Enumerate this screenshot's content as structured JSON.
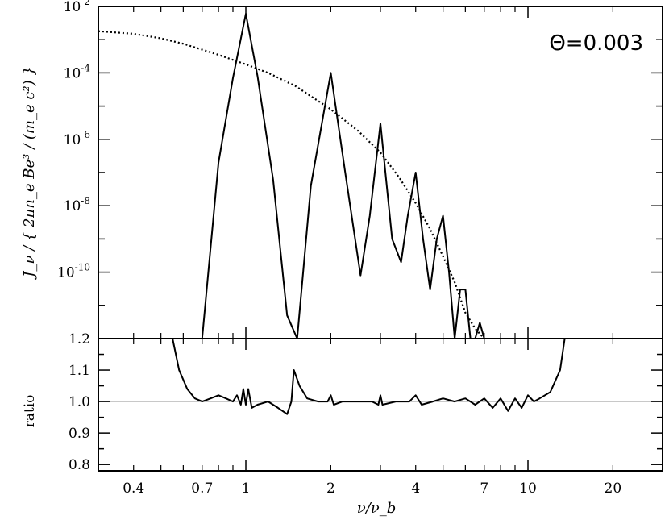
{
  "chart_data": [
    {
      "type": "line",
      "panel": "top",
      "annotation": "Θ=0.003",
      "ylabel": "J_ν / { 2πn_e Be³ / (m_e c²) }",
      "xscale": "log",
      "yscale": "log",
      "xlim": [
        0.3,
        30
      ],
      "ylim": [
        1e-12,
        0.01
      ],
      "y_ticks": [
        {
          "value": 0.01,
          "mant": "10",
          "exp": "-2"
        },
        {
          "value": 0.0001,
          "mant": "10",
          "exp": "-4"
        },
        {
          "value": 1e-06,
          "mant": "10",
          "exp": "-6"
        },
        {
          "value": 1e-08,
          "mant": "10",
          "exp": "-8"
        },
        {
          "value": 1e-10,
          "mant": "10",
          "exp": "-10"
        }
      ],
      "series": [
        {
          "style": "solid",
          "x": [
            0.7,
            0.8,
            0.9,
            1.0,
            1.1,
            1.25,
            1.4,
            1.52,
            1.7,
            2.0,
            2.25,
            2.55,
            2.75,
            3.0,
            3.3,
            3.55,
            3.75,
            4.0,
            4.25,
            4.5,
            4.75,
            5.0,
            5.25,
            5.5,
            5.75,
            6.0,
            6.25,
            6.5,
            6.75,
            7.0
          ],
          "y": [
            1e-12,
            2e-07,
            7e-05,
            0.006,
            8e-05,
            6e-08,
            5e-12,
            1e-12,
            4e-08,
            0.0001,
            1e-07,
            8e-11,
            5e-09,
            3e-06,
            1e-09,
            2e-10,
            5e-09,
            1e-07,
            1e-09,
            3e-11,
            1e-09,
            5e-09,
            1e-10,
            1e-12,
            3e-11,
            3e-11,
            1e-12,
            1e-12,
            3e-12,
            1e-12
          ]
        },
        {
          "style": "dotted",
          "x": [
            0.3,
            0.4,
            0.5,
            0.6,
            0.7,
            0.8,
            1.0,
            1.2,
            1.5,
            2.0,
            2.5,
            3.0,
            3.5,
            4.0,
            4.5,
            5.0,
            5.5,
            6.0,
            6.5,
            7.0
          ],
          "y": [
            0.0018,
            0.0015,
            0.0011,
            0.00075,
            0.0005,
            0.00035,
            0.00018,
            0.0001,
            4e-05,
            8e-06,
            1.8e-06,
            4e-07,
            7e-08,
            1.2e-08,
            2e-09,
            3e-10,
            5e-11,
            6e-12,
            2e-12,
            1e-12
          ]
        }
      ]
    },
    {
      "type": "line",
      "panel": "bottom",
      "ylabel": "ratio",
      "xlabel": "ν/ν_b",
      "xscale": "log",
      "xlim": [
        0.3,
        30
      ],
      "ylim": [
        0.78,
        1.2
      ],
      "y_ticks": [
        "1.2",
        "1.1",
        "1.0",
        "0.9",
        "0.8"
      ],
      "x_ticks": [
        "0.4",
        "0.7",
        "1",
        "2",
        "4",
        "7",
        "10",
        "20"
      ],
      "series": [
        {
          "style": "solid",
          "x": [
            0.55,
            0.58,
            0.62,
            0.66,
            0.7,
            0.75,
            0.8,
            0.85,
            0.9,
            0.93,
            0.96,
            0.98,
            1.0,
            1.02,
            1.05,
            1.1,
            1.2,
            1.3,
            1.4,
            1.45,
            1.48,
            1.55,
            1.65,
            1.8,
            1.95,
            2.0,
            2.05,
            2.2,
            2.5,
            2.8,
            2.95,
            3.0,
            3.05,
            3.4,
            3.8,
            4.0,
            4.2,
            4.6,
            5.0,
            5.5,
            6.0,
            6.5,
            7.0,
            7.5,
            8.0,
            8.5,
            9.0,
            9.5,
            10.0,
            10.5,
            11.0,
            12.0,
            13.0,
            13.5
          ],
          "y": [
            1.2,
            1.1,
            1.04,
            1.01,
            1.0,
            1.01,
            1.02,
            1.01,
            1.0,
            1.02,
            0.99,
            1.04,
            0.99,
            1.04,
            0.98,
            0.99,
            1.0,
            0.98,
            0.96,
            1.0,
            1.1,
            1.05,
            1.01,
            1.0,
            1.0,
            1.02,
            0.99,
            1.0,
            1.0,
            1.0,
            0.99,
            1.02,
            0.99,
            1.0,
            1.0,
            1.02,
            0.99,
            1.0,
            1.01,
            1.0,
            1.01,
            0.99,
            1.01,
            0.98,
            1.01,
            0.97,
            1.01,
            0.98,
            1.02,
            1.0,
            1.01,
            1.03,
            1.1,
            1.2
          ]
        },
        {
          "style": "reference",
          "x": [
            0.3,
            30
          ],
          "y": [
            1.0,
            1.0
          ]
        }
      ]
    }
  ]
}
